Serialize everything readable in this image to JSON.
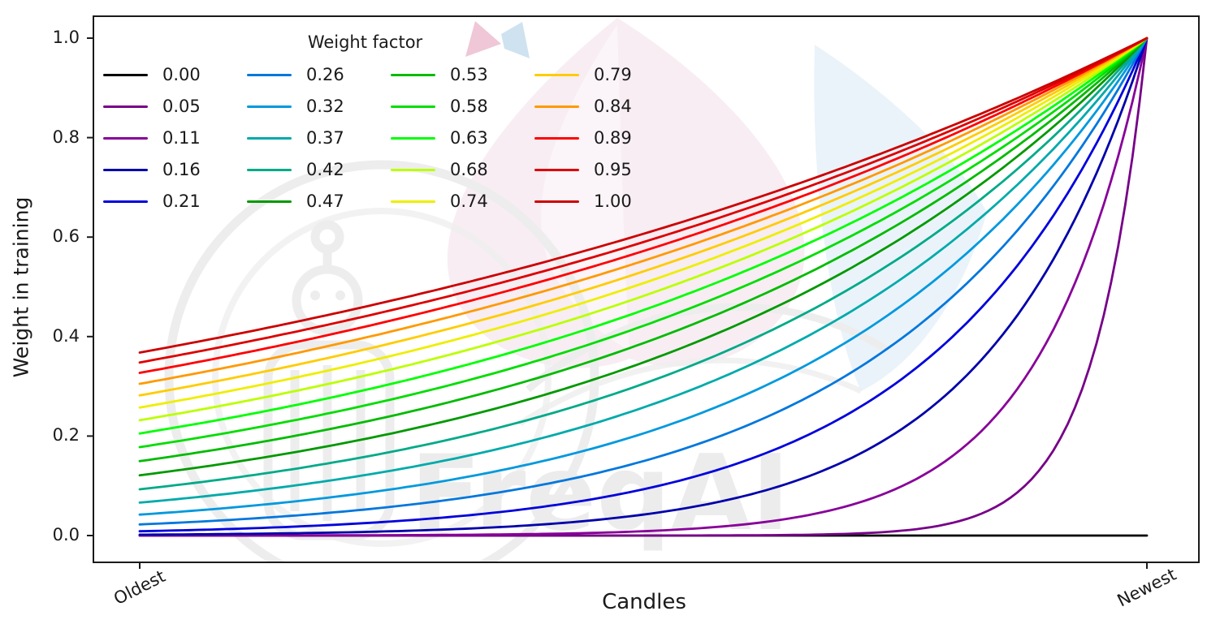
{
  "watermark": {
    "text": "FreqAI"
  },
  "legend": {
    "title": "Weight factor",
    "position": "upper left",
    "columns": 4
  },
  "chart_data": {
    "type": "line",
    "title": "",
    "xlabel": "Candles",
    "ylabel": "Weight in training",
    "x_tick_labels": [
      "Oldest",
      "Newest"
    ],
    "x_tick_positions": [
      0,
      1
    ],
    "y_ticks": [
      0.0,
      0.2,
      0.4,
      0.6,
      0.8,
      1.0
    ],
    "y_tick_labels": [
      "0.0",
      "0.2",
      "0.4",
      "0.6",
      "0.8",
      "1.0"
    ],
    "ylim": [
      0,
      1
    ],
    "xlim": [
      0,
      1
    ],
    "grid": false,
    "legend_title": "Weight factor",
    "legend_position": "upper left",
    "formula": "weight(x) = exp(-(1 - x) / weight_factor), with weight(x) = 0 when weight_factor = 0; x from 0 (Oldest) to 1 (Newest); all curves reach 1.0 at Newest",
    "series": [
      {
        "name": "0.00",
        "weight_factor": 0.0,
        "color": "#000000",
        "value_at_oldest": 0.0,
        "value_at_newest": 0.0
      },
      {
        "name": "0.05",
        "weight_factor": 0.0526,
        "color": "#770088",
        "value_at_oldest": 0.0,
        "value_at_newest": 1.0
      },
      {
        "name": "0.11",
        "weight_factor": 0.1053,
        "color": "#880099",
        "value_at_oldest": 0.0001,
        "value_at_newest": 1.0
      },
      {
        "name": "0.16",
        "weight_factor": 0.1579,
        "color": "#0000aa",
        "value_at_oldest": 0.0018,
        "value_at_newest": 1.0
      },
      {
        "name": "0.21",
        "weight_factor": 0.2105,
        "color": "#0000dd",
        "value_at_oldest": 0.0087,
        "value_at_newest": 1.0
      },
      {
        "name": "0.26",
        "weight_factor": 0.2632,
        "color": "#0077dd",
        "value_at_oldest": 0.0224,
        "value_at_newest": 1.0
      },
      {
        "name": "0.32",
        "weight_factor": 0.3158,
        "color": "#0099dd",
        "value_at_oldest": 0.0421,
        "value_at_newest": 1.0
      },
      {
        "name": "0.37",
        "weight_factor": 0.3684,
        "color": "#00aaaa",
        "value_at_oldest": 0.0663,
        "value_at_newest": 1.0
      },
      {
        "name": "0.42",
        "weight_factor": 0.4211,
        "color": "#00aa88",
        "value_at_oldest": 0.093,
        "value_at_newest": 1.0
      },
      {
        "name": "0.47",
        "weight_factor": 0.4737,
        "color": "#009900",
        "value_at_oldest": 0.1211,
        "value_at_newest": 1.0
      },
      {
        "name": "0.53",
        "weight_factor": 0.5263,
        "color": "#00bb00",
        "value_at_oldest": 0.1496,
        "value_at_newest": 1.0
      },
      {
        "name": "0.58",
        "weight_factor": 0.5789,
        "color": "#00dd00",
        "value_at_oldest": 0.1778,
        "value_at_newest": 1.0
      },
      {
        "name": "0.63",
        "weight_factor": 0.6316,
        "color": "#00ff00",
        "value_at_oldest": 0.2053,
        "value_at_newest": 1.0
      },
      {
        "name": "0.68",
        "weight_factor": 0.6842,
        "color": "#bbff00",
        "value_at_oldest": 0.2319,
        "value_at_newest": 1.0
      },
      {
        "name": "0.74",
        "weight_factor": 0.7368,
        "color": "#eeee00",
        "value_at_oldest": 0.2574,
        "value_at_newest": 1.0
      },
      {
        "name": "0.79",
        "weight_factor": 0.7895,
        "color": "#ffcc00",
        "value_at_oldest": 0.2817,
        "value_at_newest": 1.0
      },
      {
        "name": "0.84",
        "weight_factor": 0.8421,
        "color": "#ff9900",
        "value_at_oldest": 0.305,
        "value_at_newest": 1.0
      },
      {
        "name": "0.89",
        "weight_factor": 0.8947,
        "color": "#ff0000",
        "value_at_oldest": 0.3271,
        "value_at_newest": 1.0
      },
      {
        "name": "0.95",
        "weight_factor": 0.9474,
        "color": "#dd0000",
        "value_at_oldest": 0.348,
        "value_at_newest": 1.0
      },
      {
        "name": "1.00",
        "weight_factor": 1.0,
        "color": "#cc0000",
        "value_at_oldest": 0.3679,
        "value_at_newest": 1.0
      }
    ]
  }
}
